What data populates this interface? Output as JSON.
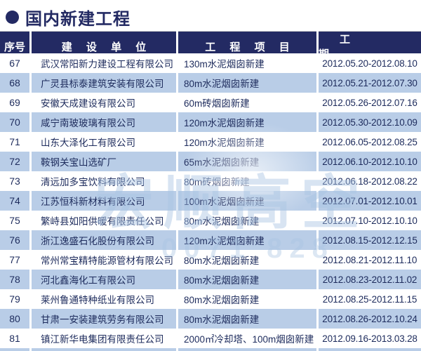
{
  "page": {
    "title": "国内新建工程"
  },
  "colors": {
    "navy": "#232a63",
    "row_alt": "#b9cde7",
    "row_text": "#1d2b5c",
    "watermark": "#a9c5e3"
  },
  "watermark": {
    "line1": "宏顺高空",
    "line2": "0071 828"
  },
  "table": {
    "headers": {
      "seq": "序号",
      "company": "建 设 单 位",
      "project": "工 程 项 目",
      "dates": "工 期"
    },
    "rows": [
      {
        "seq": 67,
        "company": "武汉常阳新力建设工程有限公司",
        "project": "130m水泥烟囱新建",
        "dates": "2012.05.20-2012.08.10"
      },
      {
        "seq": 68,
        "company": "广灵县标泰建筑安装有限公司",
        "project": "80m水泥烟囱新建",
        "dates": "2012.05.21-2012.07.30"
      },
      {
        "seq": 69,
        "company": "安徽天成建设有限公司",
        "project": "60m砖烟囱新建",
        "dates": "2012.05.26-2012.07.16"
      },
      {
        "seq": 70,
        "company": "咸宁南玻玻璃有限公司",
        "project": "120m水泥烟囱新建",
        "dates": "2012.05.30-2012.10.09"
      },
      {
        "seq": 71,
        "company": "山东大泽化工有限公司",
        "project": "120m水泥烟囱新建",
        "dates": "2012.06.05-2012.08.25"
      },
      {
        "seq": 72,
        "company": "鞍钢关宝山选矿厂",
        "project": "65m水泥烟囱新建",
        "dates": "2012.06.10-2012.10.10"
      },
      {
        "seq": 73,
        "company": "清远加多宝饮料有限公司",
        "project": "80m砖烟囱新建",
        "dates": "2012.06.18-2012.08.22"
      },
      {
        "seq": 74,
        "company": "江苏恒科新材料有限公司",
        "project": "100m水泥烟囱新建",
        "dates": "2012.07.01-2012.10.01"
      },
      {
        "seq": 75,
        "company": "繁峙县如阳供暖有限责任公司",
        "project": "80m水泥烟囱新建",
        "dates": "2012.07.10-2012.10.10"
      },
      {
        "seq": 76,
        "company": "浙江逸盛石化股份有限公司",
        "project": "120m水泥烟囱新建",
        "dates": "2012.08.15-2012.12.15"
      },
      {
        "seq": 77,
        "company": "常州常宝精特能源管材有限公司",
        "project": "80m水泥烟囱新建",
        "dates": "2012.08.21-2012.11.10"
      },
      {
        "seq": 78,
        "company": "河北鑫海化工有限公司",
        "project": "80m水泥烟囱新建",
        "dates": "2012.08.23-2012.11.02"
      },
      {
        "seq": 79,
        "company": "莱州鲁通特种纸业有限公司",
        "project": "80m水泥烟囱新建",
        "dates": "2012.08.25-2012.11.15"
      },
      {
        "seq": 80,
        "company": "甘肃一安装建筑劳务有限公司",
        "project": "80m水泥烟囱新建",
        "dates": "2012.08.26-2012.10.24"
      },
      {
        "seq": 81,
        "company": "镇江新华电集团有限责任公司",
        "project": "2000㎡冷却塔、100m烟囱新建",
        "dates": "2012.09.16-2013.03.28"
      }
    ]
  }
}
